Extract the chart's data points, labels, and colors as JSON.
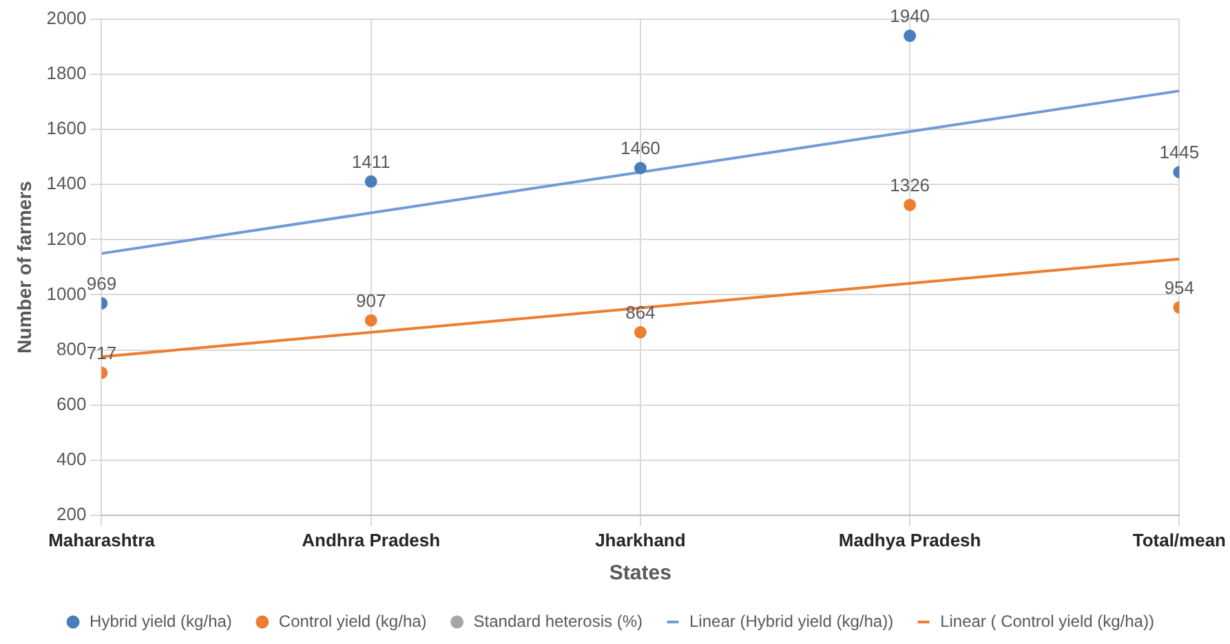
{
  "chart_data": {
    "type": "scatter",
    "xlabel": "States",
    "ylabel": "Number of farmers",
    "categories": [
      "Maharashtra",
      "Andhra Pradesh",
      "Jharkhand",
      "Madhya Pradesh",
      "Total/mean"
    ],
    "ylim": [
      200,
      2000
    ],
    "yticks": [
      200,
      400,
      600,
      800,
      1000,
      1200,
      1400,
      1600,
      1800,
      2000
    ],
    "grid": true,
    "legend": "bottom",
    "marker": "circle",
    "series": [
      {
        "name": "Hybrid yield (kg/ha)",
        "color": "#4a7ebb",
        "values": [
          969,
          1411,
          1460,
          1940,
          1445
        ],
        "value_labels": [
          "969",
          "1411",
          "1460",
          "1940",
          "1445"
        ]
      },
      {
        "name": "Control yield (kg/ha)",
        "color": "#ed7d31",
        "values": [
          717,
          907,
          864,
          1326,
          954
        ],
        "value_labels": [
          "717",
          "907",
          "864",
          "1326",
          "954"
        ]
      },
      {
        "name": "Standard heterosis (%)",
        "color": "#a5a5a5",
        "values": [
          null,
          null,
          null,
          null,
          null
        ]
      },
      {
        "name": "Linear (Hybrid yield (kg/ha))",
        "type": "line",
        "marker": "none",
        "line_style": "solid",
        "color": "#6f9bd6",
        "x": [
          "Maharashtra",
          "Total/mean"
        ],
        "values": [
          1150,
          1740
        ]
      },
      {
        "name": "Linear ( Control yield (kg/ha))",
        "type": "line",
        "marker": "none",
        "line_style": "solid",
        "color": "#ed7d31",
        "x": [
          "Maharashtra",
          "Total/mean"
        ],
        "values": [
          775,
          1130
        ]
      }
    ]
  }
}
